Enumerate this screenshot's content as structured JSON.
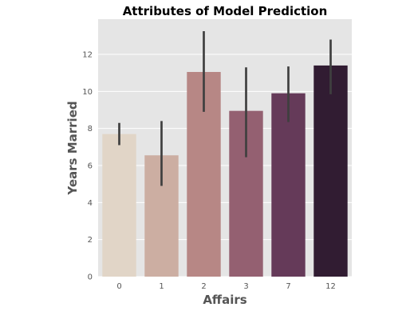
{
  "chart_data": {
    "type": "bar",
    "title": "Attributes of Model Prediction",
    "xlabel": "Affairs",
    "ylabel": "Years Married",
    "categories": [
      "0",
      "1",
      "2",
      "3",
      "7",
      "12"
    ],
    "values": [
      7.7,
      6.55,
      11.05,
      8.95,
      9.9,
      11.4
    ],
    "error_low": [
      7.1,
      4.9,
      8.9,
      6.45,
      8.35,
      9.85
    ],
    "error_high": [
      8.3,
      8.4,
      13.25,
      11.3,
      11.35,
      12.8
    ],
    "ylim": [
      0,
      13.9
    ],
    "yticks": [
      0,
      2,
      4,
      6,
      8,
      10,
      12
    ],
    "grid": true,
    "colors": [
      "#e1d5c7",
      "#ccaea2",
      "#b78785",
      "#946071",
      "#653a59",
      "#311c32"
    ],
    "plot_background": "#e5e5e5",
    "errorbar_color": "#3f3f3f"
  }
}
